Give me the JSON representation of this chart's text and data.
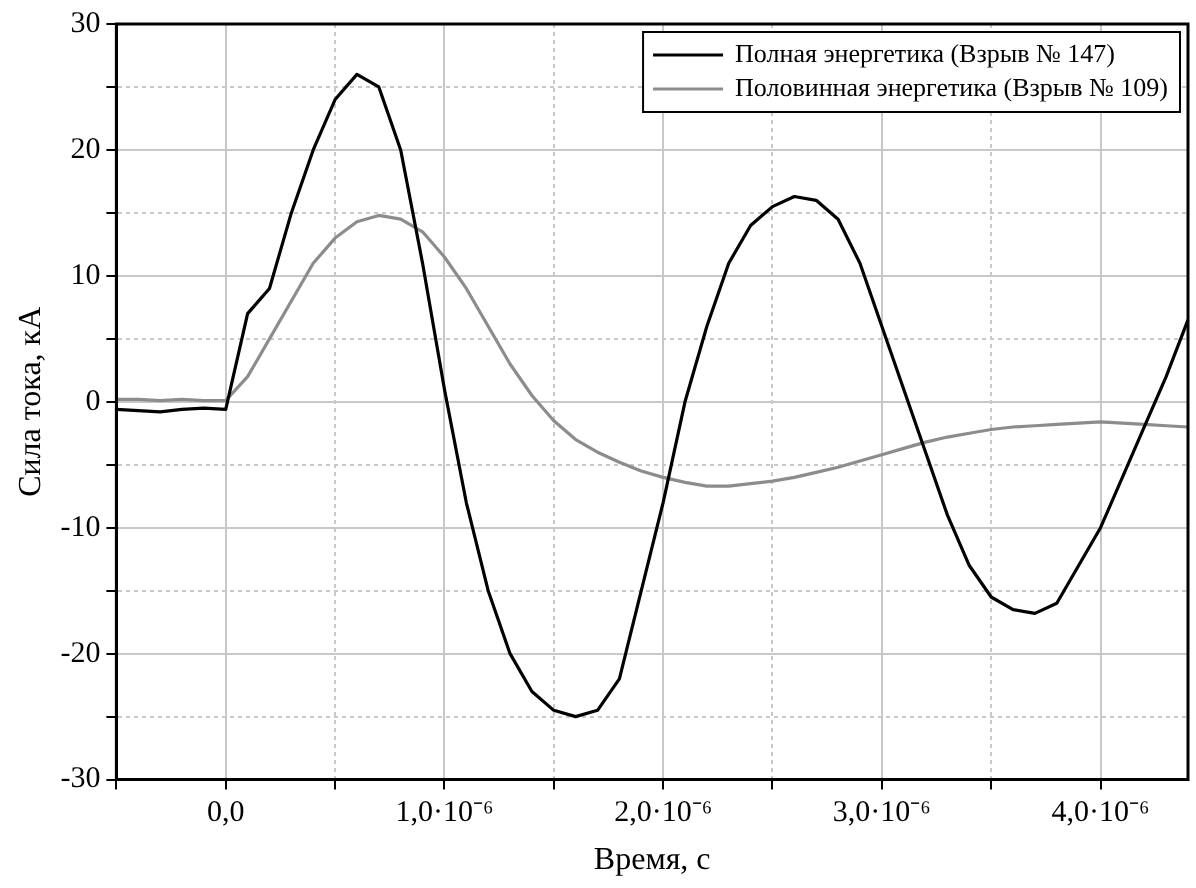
{
  "chart_data": {
    "type": "line",
    "xlabel": "Время, с",
    "ylabel": "Сила тока, кА",
    "categories": [
      null,
      null,
      null,
      null,
      null,
      "0,0",
      null,
      null,
      null,
      null,
      null,
      null,
      null,
      null,
      null,
      "1,0·10⁻⁶",
      null,
      null,
      null,
      null,
      null,
      null,
      null,
      null,
      null,
      "2,0·10⁻⁶",
      null,
      null,
      null,
      null,
      null,
      null,
      null,
      null,
      null,
      "3,0·10⁻⁶",
      null,
      null,
      null,
      null,
      null,
      null,
      null,
      null,
      null,
      "4,0·10⁻⁶",
      null,
      null,
      null,
      null
    ],
    "ylim": [
      -30,
      30
    ],
    "yticks": [
      -30,
      {
        "value": -25,
        "label": null
      },
      -20,
      {
        "value": -15,
        "label": null
      },
      -10,
      {
        "value": -5,
        "label": null
      },
      0,
      {
        "value": 5,
        "label": null
      },
      10,
      {
        "value": 15,
        "label": null
      },
      20,
      {
        "value": 25,
        "label": null
      },
      30
    ],
    "grid": true,
    "legend": "top right",
    "series": [
      {
        "name": "Полная энергетика (Взрыв № 147)",
        "color": "#000000",
        "values": [
          -0.6,
          -0.7,
          -0.8,
          -0.6,
          -0.5,
          -0.6,
          7,
          9,
          15,
          20,
          24,
          26,
          25,
          20,
          11,
          1,
          -8,
          -15,
          -20,
          -23,
          -24.5,
          -25,
          -24.5,
          -22,
          -15,
          -8,
          0,
          6,
          11,
          14,
          15.5,
          16.3,
          16,
          14.5,
          11,
          6,
          1,
          -4,
          -9,
          -13,
          -15.5,
          -16.5,
          -16.8,
          -16,
          -13,
          -10,
          -6,
          -2,
          2,
          6.5
        ]
      },
      {
        "name": "Половинная энергетика (Взрыв № 109)",
        "color": "#8c8c8c",
        "values": [
          0.2,
          0.2,
          0.1,
          0.2,
          0.1,
          0.1,
          2,
          5,
          8,
          11,
          13,
          14.3,
          14.8,
          14.5,
          13.5,
          11.5,
          9,
          6,
          3,
          0.5,
          -1.5,
          -3,
          -4,
          -4.8,
          -5.5,
          -6,
          -6.4,
          -6.7,
          -6.7,
          -6.5,
          -6.3,
          -6,
          -5.6,
          -5.2,
          -4.7,
          -4.2,
          -3.7,
          -3.2,
          -2.8,
          -2.5,
          -2.2,
          -2,
          -1.9,
          -1.8,
          -1.7,
          -1.6,
          -1.7,
          -1.8,
          -1.9,
          -2
        ]
      }
    ]
  }
}
